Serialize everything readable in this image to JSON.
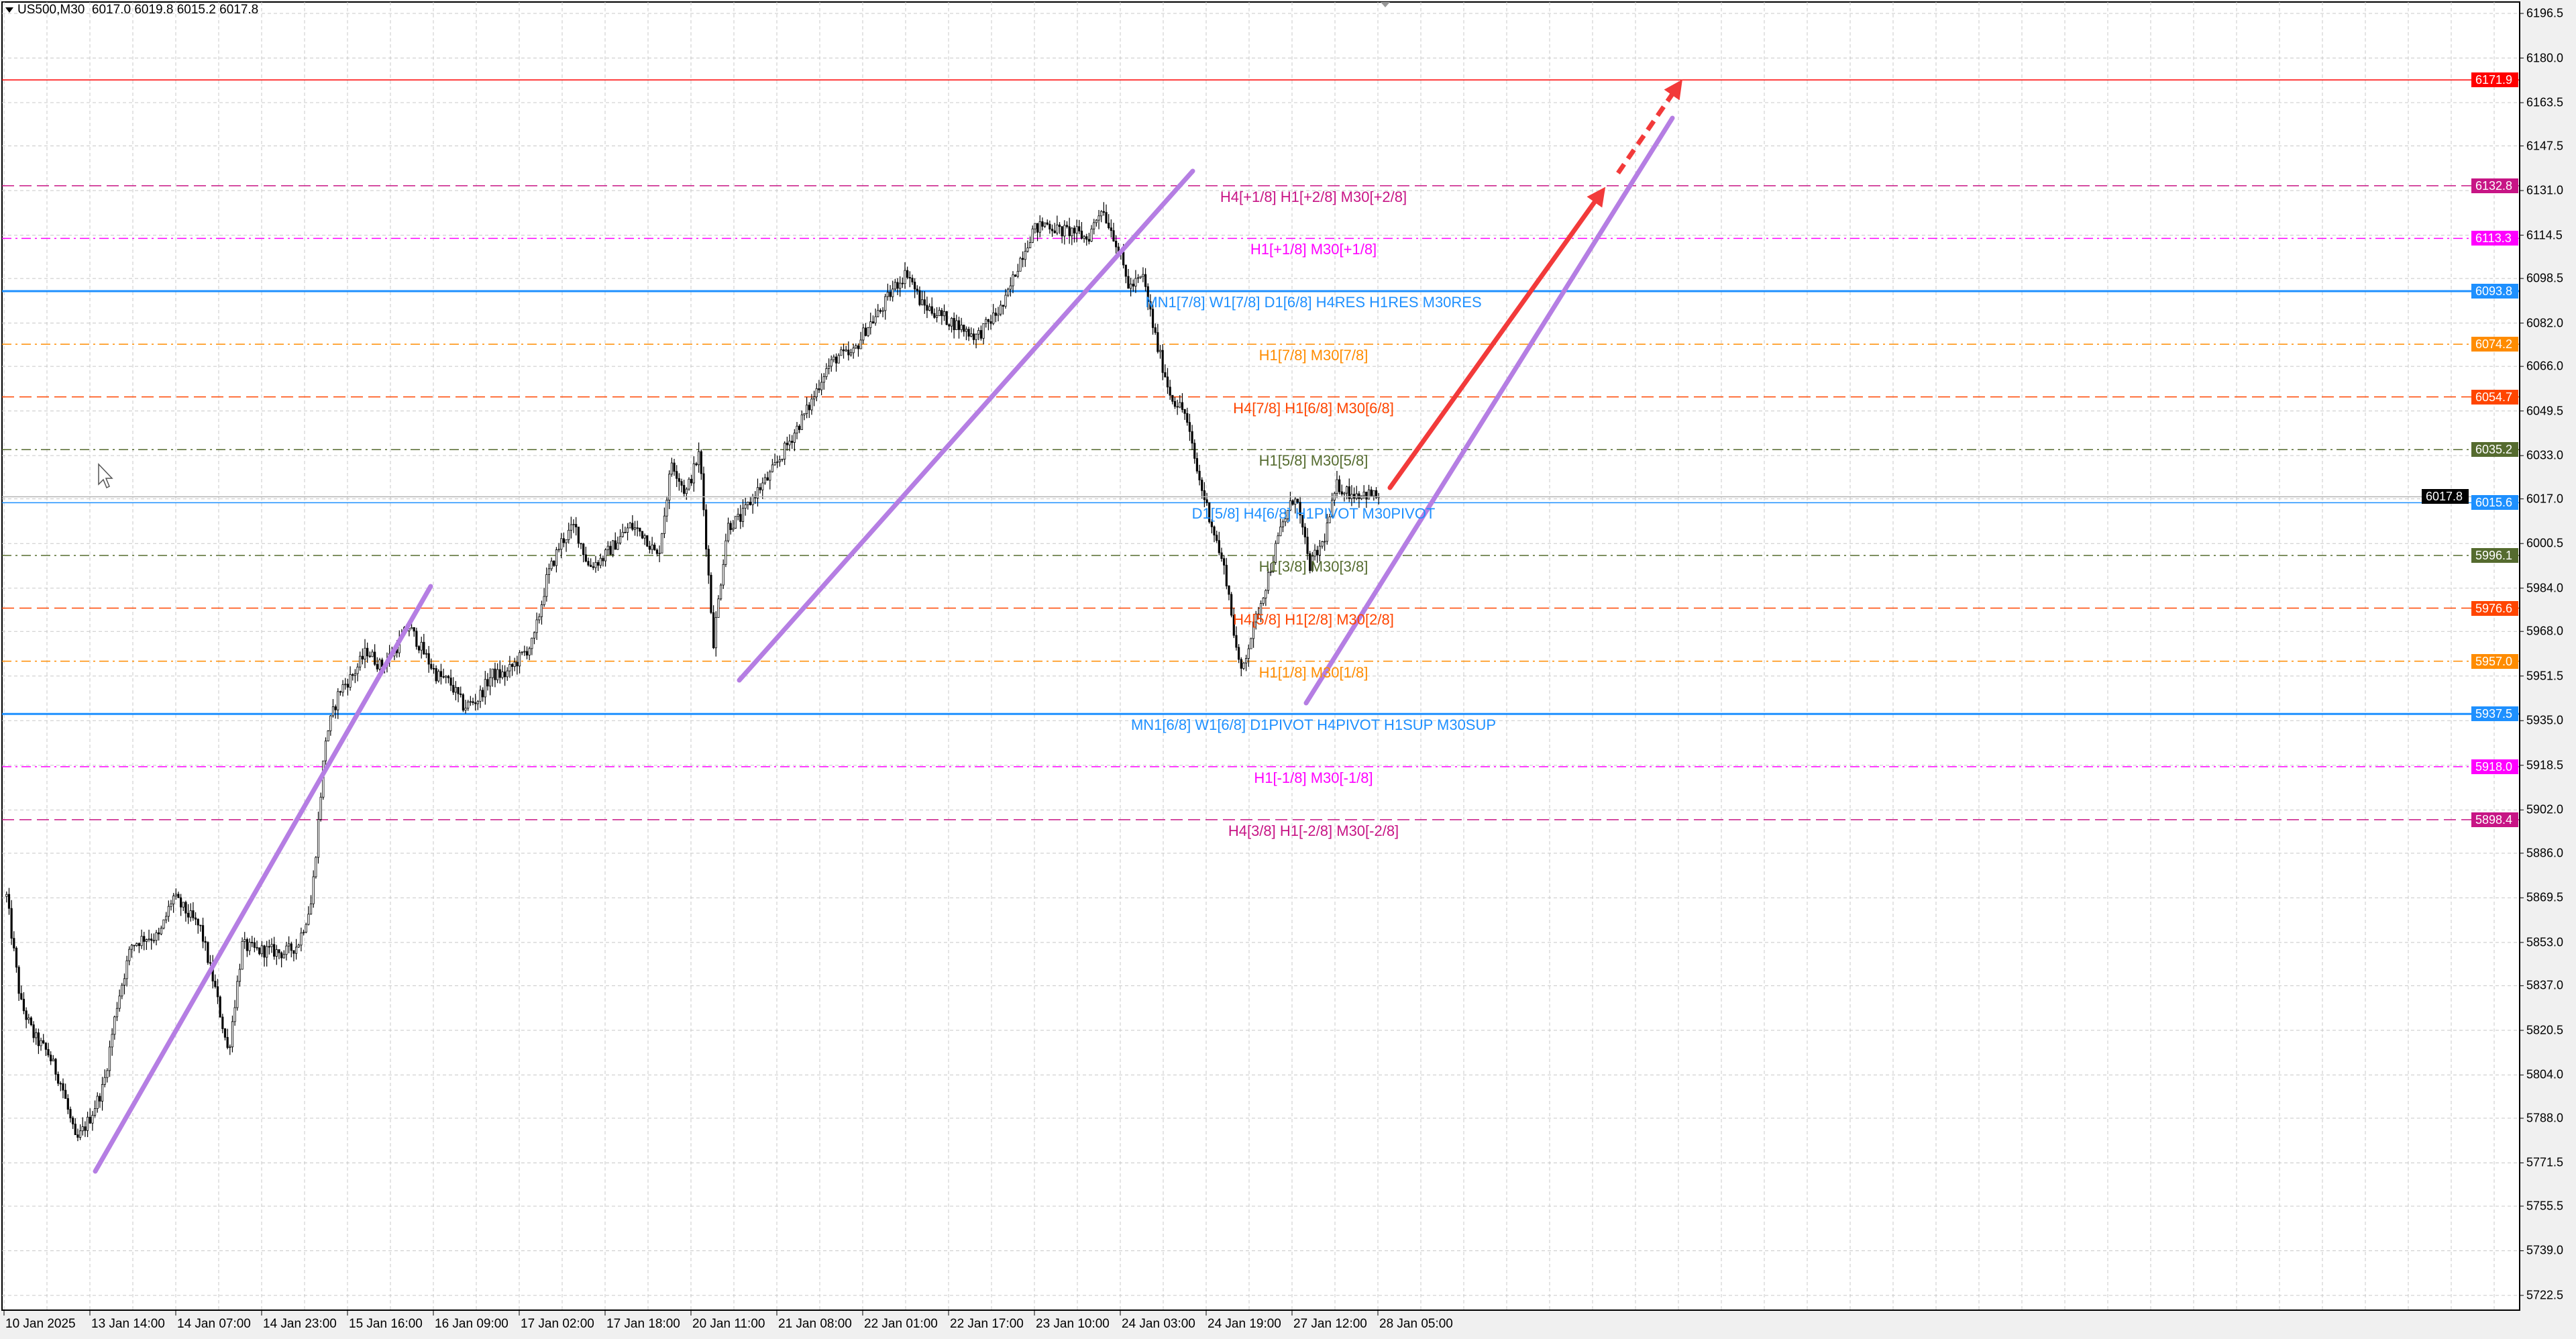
{
  "header": {
    "symbol": "US500,M30",
    "open": "6017.0",
    "high": "6019.8",
    "low": "6015.2",
    "close": "6017.8"
  },
  "chart_data": {
    "type": "candlestick",
    "title": "US500,M30",
    "ylim": [
      5722.5,
      6196.5
    ],
    "grid": true,
    "price_ticks": [
      "6196.5",
      "6180.0",
      "6163.5",
      "6147.5",
      "6131.0",
      "6114.5",
      "6098.5",
      "6082.0",
      "6066.0",
      "6049.5",
      "6033.0",
      "6017.0",
      "6000.5",
      "5984.0",
      "5968.0",
      "5951.5",
      "5935.0",
      "5918.5",
      "5902.0",
      "5886.0",
      "5869.5",
      "5853.0",
      "5837.0",
      "5820.5",
      "5804.0",
      "5788.0",
      "5771.5",
      "5755.5",
      "5739.0",
      "5722.5"
    ],
    "time_ticks": [
      "10 Jan 2025",
      "13 Jan 14:00",
      "14 Jan 07:00",
      "14 Jan 23:00",
      "15 Jan 16:00",
      "16 Jan 09:00",
      "17 Jan 02:00",
      "17 Jan 18:00",
      "20 Jan 11:00",
      "21 Jan 08:00",
      "22 Jan 01:00",
      "22 Jan 17:00",
      "23 Jan 10:00",
      "24 Jan 03:00",
      "24 Jan 19:00",
      "27 Jan 12:00",
      "28 Jan 05:00"
    ],
    "close_path": [
      5870,
      5831,
      5818,
      5812,
      5800,
      5779,
      5788,
      5800,
      5831,
      5852,
      5855,
      5855,
      5870,
      5864,
      5858,
      5837,
      5812,
      5852,
      5850,
      5850,
      5849,
      5852,
      5868,
      5928,
      5946,
      5952,
      5961,
      5955,
      5961,
      5970,
      5961,
      5952,
      5949,
      5940,
      5943,
      5952,
      5952,
      5958,
      5964,
      5988,
      6001,
      6007,
      5992,
      5995,
      6001,
      6007,
      6004,
      5995,
      6031,
      6019,
      6034,
      5964,
      6007,
      6010,
      6019,
      6025,
      6034,
      6043,
      6052,
      6064,
      6070,
      6070,
      6080,
      6086,
      6095,
      6101,
      6089,
      6086,
      6083,
      6080,
      6077,
      6083,
      6089,
      6104,
      6116,
      6119,
      6116,
      6116,
      6113,
      6125,
      6113,
      6095,
      6099,
      6074,
      6055,
      6049,
      6025,
      6007,
      5988,
      5952,
      5970,
      5988,
      6007,
      6019,
      5992,
      6001,
      6022,
      6019,
      6019,
      6017.8
    ],
    "last_price": 6017.8,
    "levels": [
      {
        "price": 6171.9,
        "price_label": "6171.9",
        "color": "#ff0000",
        "style": "solid",
        "label": ""
      },
      {
        "price": 6132.8,
        "price_label": "6132.8",
        "color": "#c71585",
        "style": "dash",
        "label": "H4[+1/8] H1[+2/8] M30[+2/8]"
      },
      {
        "price": 6113.3,
        "price_label": "6113.3",
        "color": "#ff00ff",
        "style": "dashdot",
        "label": "H1[+1/8] M30[+1/8]"
      },
      {
        "price": 6093.8,
        "price_label": "6093.8",
        "color": "#1e90ff",
        "style": "solid",
        "label": "MN1[7/8] W1[7/8] D1[6/8] H4RES H1RES M30RES"
      },
      {
        "price": 6074.2,
        "price_label": "6074.2",
        "color": "#ff8c00",
        "style": "dashdot",
        "label": "H1[7/8] M30[7/8]"
      },
      {
        "price": 6054.7,
        "price_label": "6054.7",
        "color": "#ff4500",
        "style": "dash",
        "label": "H4[7/8] H1[6/8] M30[6/8]"
      },
      {
        "price": 6035.2,
        "price_label": "6035.2",
        "color": "#556b2f",
        "style": "dashdot",
        "label": "H1[5/8] M30[5/8]"
      },
      {
        "price": 6015.6,
        "price_label": "6015.6",
        "color": "#1e90ff",
        "style": "solid",
        "label": "D1[5/8] H4[6/8] H1PIVOT M30PIVOT"
      },
      {
        "price": 5996.1,
        "price_label": "5996.1",
        "color": "#556b2f",
        "style": "dashdot",
        "label": "H1[3/8] M30[3/8]"
      },
      {
        "price": 5976.6,
        "price_label": "5976.6",
        "color": "#ff4500",
        "style": "dash",
        "label": "H4[5/8] H1[2/8] M30[2/8]"
      },
      {
        "price": 5957.0,
        "price_label": "5957.0",
        "color": "#ff8c00",
        "style": "dashdot",
        "label": "H1[1/8] M30[1/8]"
      },
      {
        "price": 5937.5,
        "price_label": "5937.5",
        "color": "#1e90ff",
        "style": "solid",
        "label": "MN1[6/8] W1[6/8] D1PIVOT H4PIVOT H1SUP M30SUP"
      },
      {
        "price": 5918.0,
        "price_label": "5918.0",
        "color": "#ff00ff",
        "style": "dashdot",
        "label": "H1[-1/8] M30[-1/8]"
      },
      {
        "price": 5898.4,
        "price_label": "5898.4",
        "color": "#c71585",
        "style": "dash",
        "label": "H4[3/8] H1[-2/8] M30[-2/8]"
      }
    ],
    "trendline_color": "#b57ee3",
    "arrow_color": "#f23a3a"
  }
}
